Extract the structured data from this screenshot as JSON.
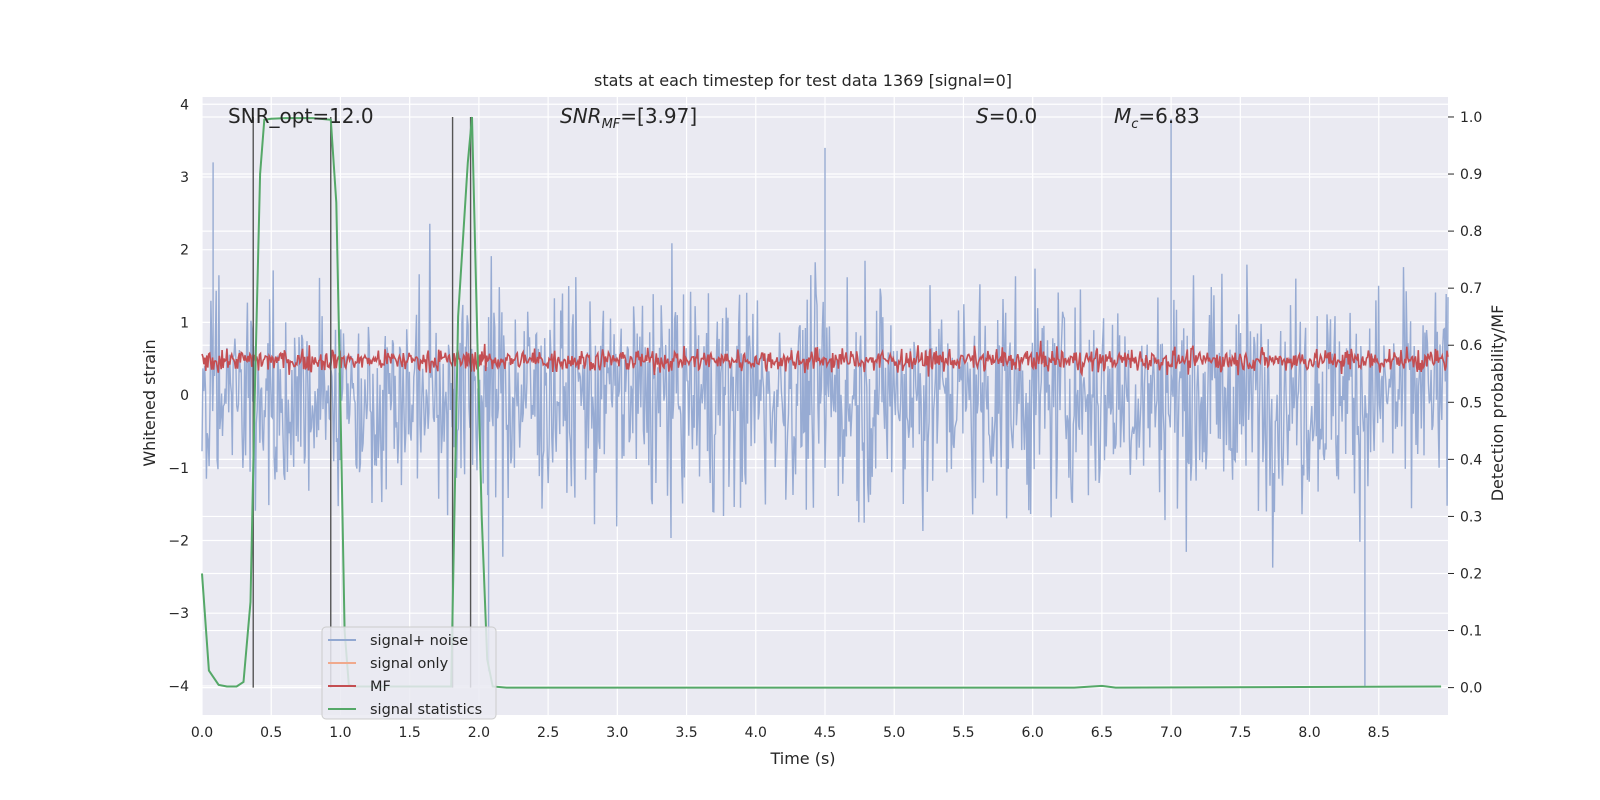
{
  "chart_data": {
    "type": "line",
    "title": "stats at each timestep for test data 1369 [signal=0]",
    "xlabel": "Time (s)",
    "ylabel_left": "Whitened strain",
    "ylabel_right": "Detection probability/MF",
    "xlim": [
      0,
      9.0
    ],
    "ylim_left": [
      -4.4,
      4.1
    ],
    "ylim_right": [
      -0.048,
      1.035
    ],
    "x_ticks": [
      "0.0",
      "0.5",
      "1.0",
      "1.5",
      "2.0",
      "2.5",
      "3.0",
      "3.5",
      "4.0",
      "4.5",
      "5.0",
      "5.5",
      "6.0",
      "6.5",
      "7.0",
      "7.5",
      "8.0",
      "8.5"
    ],
    "y_ticks_left": [
      "−4",
      "−3",
      "−2",
      "−1",
      "0",
      "1",
      "2",
      "3",
      "4"
    ],
    "y_ticks_right": [
      "0.0",
      "0.1",
      "0.2",
      "0.3",
      "0.4",
      "0.5",
      "0.6",
      "0.7",
      "0.8",
      "0.9",
      "1.0"
    ],
    "grid": true,
    "annotations": {
      "snr_opt": "SNR_opt=12.0",
      "snr_mf_sym": "SNR",
      "snr_mf_sub": "MF",
      "snr_mf_val": "=[3.97]",
      "s_sym": "S",
      "s_val": "=0.0",
      "mc_sym": "M",
      "mc_sub": "c",
      "mc_val": "=6.83"
    },
    "vertical_lines_x": [
      0.37,
      0.93,
      1.81,
      1.94
    ],
    "series": [
      {
        "name": "signal+ noise",
        "color": "#92a8d1",
        "kind": "noise",
        "approx_range": [
          -3.9,
          3.9
        ],
        "notable_peaks": [
          [
            8.4,
            -4.0
          ],
          [
            7.0,
            3.8
          ],
          [
            2.07,
            -3.8
          ],
          [
            4.5,
            3.4
          ],
          [
            0.08,
            3.2
          ]
        ]
      },
      {
        "name": "signal only",
        "color": "#f0a98d",
        "kind": "flat",
        "values": []
      },
      {
        "name": "MF",
        "color": "#c44e52",
        "kind": "noise",
        "approx_range": [
          0.0,
          0.95
        ]
      },
      {
        "name": "signal statistics",
        "color": "#55a868",
        "kind": "line",
        "axis": "right",
        "x": [
          0.0,
          0.05,
          0.12,
          0.18,
          0.25,
          0.3,
          0.35,
          0.38,
          0.42,
          0.45,
          0.5,
          0.6,
          0.8,
          0.93,
          0.97,
          1.0,
          1.03,
          1.06,
          1.1,
          1.8,
          1.85,
          1.92,
          1.95,
          1.98,
          2.02,
          2.06,
          2.1,
          2.2,
          6.3,
          6.5,
          6.6,
          8.95
        ],
        "values": [
          0.2,
          0.03,
          0.005,
          0.002,
          0.002,
          0.01,
          0.15,
          0.5,
          0.9,
          0.995,
          0.997,
          0.998,
          0.998,
          0.995,
          0.85,
          0.5,
          0.1,
          0.005,
          0.002,
          0.002,
          0.65,
          0.92,
          1.0,
          0.7,
          0.3,
          0.05,
          0.002,
          0.0,
          0.0,
          0.003,
          0.0,
          0.002
        ]
      }
    ],
    "legend": {
      "placement": "lower-left",
      "entries": [
        "signal+ noise",
        "signal only",
        "MF",
        "signal statistics"
      ]
    },
    "colors": {
      "plot_bg": "#eaeaf2",
      "grid": "#ffffff",
      "vline": "#555555"
    }
  }
}
